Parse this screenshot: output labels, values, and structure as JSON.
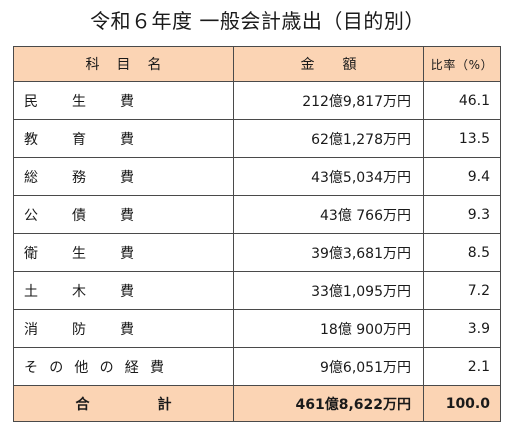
{
  "title": "令和６年度 一般会計歳出（目的別）",
  "table": {
    "headers": {
      "item": "科目名",
      "amount": "金額",
      "ratio": "比率（%）"
    },
    "rows": [
      {
        "item": "民生費",
        "amount": "212億9,817万円",
        "ratio": "46.1"
      },
      {
        "item": "教育費",
        "amount": "62億1,278万円",
        "ratio": "13.5"
      },
      {
        "item": "総務費",
        "amount": "43億5,034万円",
        "ratio": "9.4"
      },
      {
        "item": "公債費",
        "amount": "43億 766万円",
        "ratio": "9.3"
      },
      {
        "item": "衛生費",
        "amount": "39億3,681万円",
        "ratio": "8.5"
      },
      {
        "item": "土木費",
        "amount": "33億1,095万円",
        "ratio": "7.2"
      },
      {
        "item": "消防費",
        "amount": "18億 900万円",
        "ratio": "3.9"
      },
      {
        "item": "その他の経費",
        "amount": "9億6,051万円",
        "ratio": "2.1"
      }
    ],
    "total": {
      "item": "合計",
      "amount": "461億8,622万円",
      "ratio": "100.0"
    }
  },
  "colors": {
    "header_bg": "#fbd4b4",
    "border": "#4a4a4a"
  }
}
